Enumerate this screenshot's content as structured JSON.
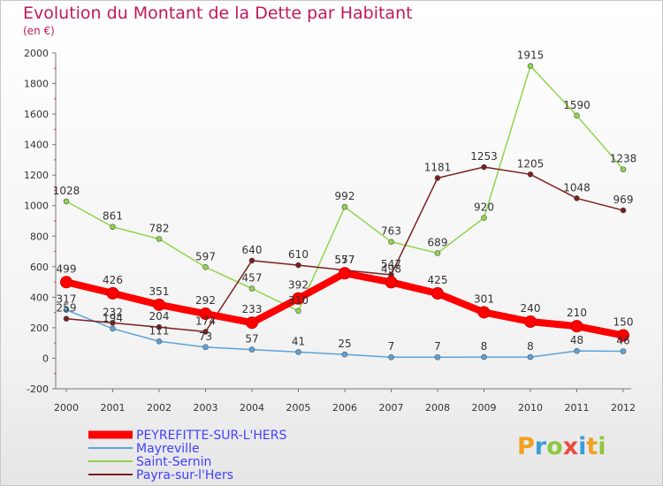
{
  "page": {
    "title": "Evolution du Montant de la Dette par Habitant",
    "subtitle": "(en €)",
    "logo_text": "Proxiti"
  },
  "chart_data": {
    "type": "line",
    "title": "Evolution du Montant de la Dette par Habitant",
    "subtitle": "(en €)",
    "xlabel": "",
    "ylabel": "",
    "x": [
      "2000",
      "2001",
      "2002",
      "2003",
      "2004",
      "2005",
      "2006",
      "2007",
      "2008",
      "2009",
      "2010",
      "2011",
      "2012"
    ],
    "ylim": [
      -200,
      2000
    ],
    "yticks": [
      -200,
      0,
      200,
      400,
      600,
      800,
      1000,
      1200,
      1400,
      1600,
      1800,
      2000
    ],
    "grid": false,
    "legend_position": "bottom-left",
    "series": [
      {
        "name": "PEYREFITTE-SUR-L'HERS",
        "color": "#ff0000",
        "values": [
          499,
          426,
          351,
          292,
          233,
          392,
          557,
          498,
          425,
          301,
          240,
          210,
          150
        ]
      },
      {
        "name": "Mayreville",
        "color": "#5ba3d9",
        "values": [
          317,
          194,
          111,
          73,
          57,
          41,
          25,
          7,
          7,
          8,
          8,
          48,
          46
        ]
      },
      {
        "name": "Saint-Sernin",
        "color": "#8fd44c",
        "values": [
          1028,
          861,
          782,
          597,
          457,
          310,
          992,
          763,
          689,
          920,
          1915,
          1590,
          1238
        ]
      },
      {
        "name": "Payra-sur-l'Hers",
        "color": "#7a1f1f",
        "values": [
          259,
          232,
          204,
          174,
          640,
          610,
          577,
          547,
          1181,
          1253,
          1205,
          1048,
          969
        ]
      }
    ],
    "point_labels": [
      {
        "series": 0,
        "labels": [
          "499",
          "426",
          "351",
          "292",
          "233",
          "392",
          "557",
          "498",
          "425",
          "301",
          "240",
          "210",
          "150"
        ]
      },
      {
        "series": 1,
        "labels": [
          "317",
          "194",
          "111",
          "73",
          "57",
          "41",
          "25",
          "7",
          "7",
          "8",
          "8",
          "48",
          "46"
        ]
      },
      {
        "series": 2,
        "labels": [
          "1028",
          "861",
          "782",
          "597",
          "457",
          "310",
          "992",
          "763",
          "689",
          "920",
          "1915",
          "1590",
          "1238"
        ]
      },
      {
        "series": 3,
        "labels": [
          "259",
          "232",
          "204",
          "174",
          "640",
          "610",
          "577",
          "547",
          "1181",
          "1253",
          "1205",
          "1048",
          "969"
        ]
      }
    ]
  }
}
